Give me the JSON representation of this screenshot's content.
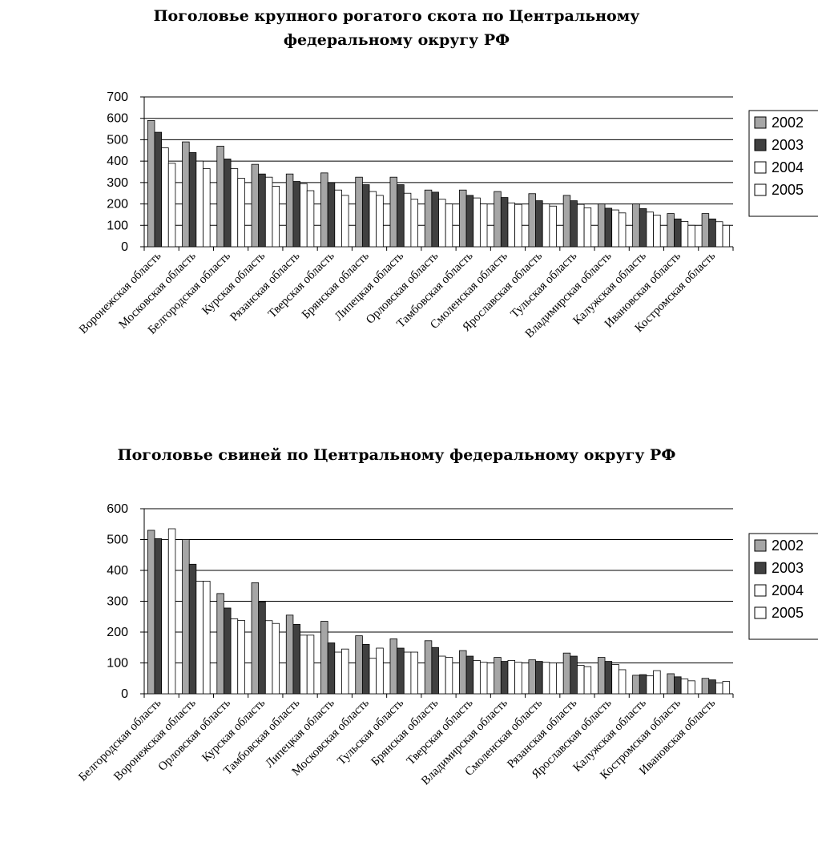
{
  "chart_data": [
    {
      "type": "bar",
      "title": "Поголовье крупного рогатого скота по Центральному федеральному округу РФ",
      "title_lines": [
        "Поголовье крупного рогатого скота по Центральному",
        "федеральному округу РФ"
      ],
      "ylim": [
        0,
        700
      ],
      "yticks": [
        0,
        100,
        200,
        300,
        400,
        500,
        600,
        700
      ],
      "ytick_labels": [
        "0",
        "100",
        "200",
        "300",
        "400",
        "500",
        "600",
        "700"
      ],
      "grid": true,
      "legend": "right",
      "categories": [
        "Воронежская область",
        "Московская область",
        "Белгородская область",
        "Курская область",
        "Рязанская область",
        "Тверская область",
        "Брянская область",
        "Липецкая область",
        "Орловская область",
        "Тамбовская область",
        "Смоленская область",
        "Ярославская область",
        "Тульская область",
        "Владимирская область",
        "Калужская область",
        "Ивановская область",
        "Костромская область"
      ],
      "series": [
        {
          "name": "2002",
          "color": "#a6a6a6",
          "values": [
            590,
            490,
            470,
            385,
            340,
            345,
            325,
            325,
            265,
            265,
            258,
            248,
            240,
            200,
            200,
            155,
            155
          ]
        },
        {
          "name": "2003",
          "color": "#404040",
          "values": [
            535,
            440,
            410,
            340,
            305,
            300,
            290,
            290,
            255,
            240,
            230,
            215,
            215,
            180,
            178,
            130,
            130
          ]
        },
        {
          "name": "2004",
          "color": "#ffffff",
          "values": [
            462,
            400,
            365,
            325,
            295,
            265,
            258,
            250,
            222,
            228,
            205,
            200,
            198,
            172,
            162,
            118,
            117
          ]
        },
        {
          "name": "2005",
          "color": "#ffffff",
          "values": [
            390,
            365,
            320,
            283,
            262,
            240,
            240,
            222,
            200,
            200,
            198,
            190,
            182,
            158,
            148,
            100,
            100
          ]
        }
      ]
    },
    {
      "type": "bar",
      "title": "Поголовье свиней по Центральному федеральному округу РФ",
      "title_lines": [
        "Поголовье свиней по Центральному федеральному округу РФ"
      ],
      "ylim": [
        0,
        600
      ],
      "yticks": [
        0,
        100,
        200,
        300,
        400,
        500,
        600
      ],
      "ytick_labels": [
        "0",
        "100",
        "200",
        "300",
        "400",
        "500",
        "600"
      ],
      "grid": true,
      "legend": "right",
      "categories": [
        "Белгородская область",
        "Воронежская область",
        "Орловская область",
        "Курская область",
        "Тамбовская область",
        "Липецкая область",
        "Московская область",
        "Тульская область",
        "Брянская область",
        "Тверская область",
        "Владимирская область",
        "Смоленская область",
        "Рязанская область",
        "Ярославская область",
        "Калужская область",
        "Костромская область",
        "Ивановская область"
      ],
      "series": [
        {
          "name": "2002",
          "color": "#a6a6a6",
          "values": [
            530,
            500,
            325,
            360,
            255,
            235,
            188,
            178,
            172,
            140,
            118,
            110,
            132,
            118,
            60,
            65,
            50
          ]
        },
        {
          "name": "2003",
          "color": "#404040",
          "values": [
            503,
            420,
            278,
            298,
            225,
            165,
            160,
            148,
            150,
            122,
            105,
            105,
            122,
            105,
            62,
            55,
            45
          ]
        },
        {
          "name": "2004",
          "color": "#ffffff",
          "values": [
            500,
            365,
            243,
            237,
            190,
            135,
            115,
            135,
            122,
            108,
            108,
            102,
            92,
            95,
            58,
            48,
            35
          ]
        },
        {
          "name": "2005",
          "color": "#ffffff",
          "values": [
            535,
            365,
            238,
            228,
            190,
            145,
            148,
            135,
            118,
            102,
            102,
            100,
            88,
            78,
            75,
            42,
            40
          ]
        }
      ]
    }
  ]
}
